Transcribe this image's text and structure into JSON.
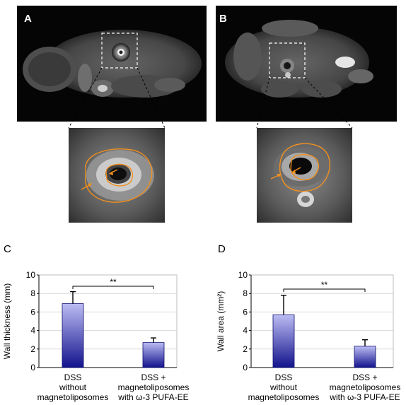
{
  "panels": {
    "a_label": "A",
    "b_label": "B",
    "c_label": "C",
    "d_label": "D"
  },
  "colors": {
    "contour": "#f0901e",
    "bar_top": "#bcbcf4",
    "bar_bottom": "#12128c",
    "grid": "#d9d9d9"
  },
  "chart_data": [
    {
      "type": "bar",
      "categories": [
        [
          "DSS",
          "without",
          "magnetoliposomes"
        ],
        [
          "DSS +",
          "magnetoliposomes",
          "with ω-3 PUFA-EE"
        ]
      ],
      "values": [
        6.9,
        2.7
      ],
      "errors": [
        1.3,
        0.5
      ],
      "xlabel": "",
      "ylabel": "Wall thickness (mm)",
      "ylim": [
        0,
        10
      ],
      "yticks": [
        0,
        2,
        4,
        6,
        8,
        10
      ],
      "grid": true,
      "significance": "**"
    },
    {
      "type": "bar",
      "categories": [
        [
          "DSS",
          "without",
          "magnetoliposomes"
        ],
        [
          "DSS +",
          "magnetoliposomes",
          "with ω-3 PUFA-EE"
        ]
      ],
      "values": [
        5.7,
        2.3
      ],
      "errors": [
        2.1,
        0.7
      ],
      "xlabel": "",
      "ylabel": "Wall area (mm²)",
      "ylim": [
        0,
        10
      ],
      "yticks": [
        0,
        2,
        4,
        6,
        8,
        10
      ],
      "grid": true,
      "significance": "**"
    }
  ]
}
